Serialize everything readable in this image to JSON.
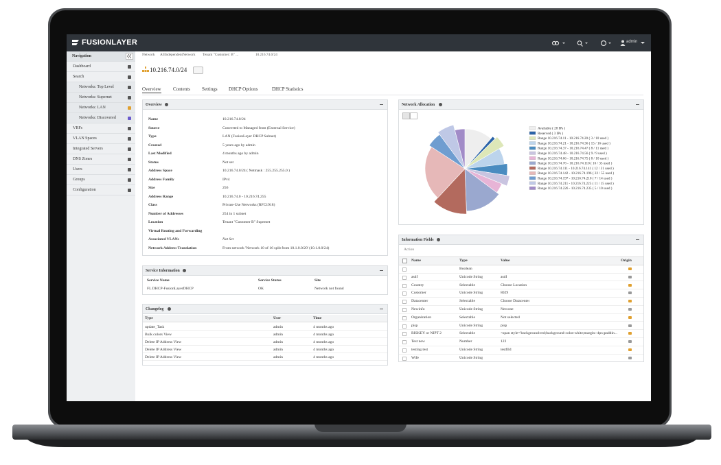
{
  "header": {
    "brand": "FUSIONLAYER",
    "user": "admin"
  },
  "sidebar": {
    "title": "Navigation",
    "items": [
      "Dashboard",
      "Search",
      "Networks: Top Level",
      "Networks: Supernet",
      "Networks: LAN",
      "Networks: Discovered",
      "VRFs",
      "VLAN Spaces",
      "Integrated Servers",
      "DNS Zones",
      "Users",
      "Groups",
      "Configuration"
    ]
  },
  "breadcrumb": [
    "Network",
    "AllIndependentNetwork",
    "Tenant \"Customer: B\" ...",
    "10.216.74.0/24"
  ],
  "title": "10.216.74.0/24",
  "tabs": [
    "Overview",
    "Contents",
    "Settings",
    "DHCP Options",
    "DHCP Statistics"
  ],
  "overview": {
    "title": "Overview",
    "rows": [
      [
        "Name",
        "10.216.74.0/24"
      ],
      [
        "Source",
        "Converted to Managed from (External Service)"
      ],
      [
        "Type",
        "LAN (FusionLayer DHCP Subnet)"
      ],
      [
        "Created",
        "5 years ago by admin"
      ],
      [
        "Last Modified",
        "4 months ago by admin"
      ],
      [
        "Status",
        "Not set"
      ],
      [
        "Address Space",
        "10.216.74.0/24 ( Netmask : 255.255.255.0 )"
      ],
      [
        "Address Family",
        "IPv4"
      ],
      [
        "Size",
        "256"
      ],
      [
        "Address Range",
        "10.216.74.0 - 10.216.74.255"
      ],
      [
        "Class",
        "Private-Use Networks (RFC1918)"
      ],
      [
        "Number of Addresses",
        "254 in 1 subnet"
      ],
      [
        "Location",
        "Tenant \"Customer B\" Supernet"
      ],
      [
        "Virtual Routing and Forwarding"
      ],
      [
        "Associated VLANs",
        "Not Set"
      ],
      [
        "Network Address Translation",
        "From network 'Network 10 of 16 split from 10.1.0.0/20' (10.1.0.0/24)"
      ]
    ]
  },
  "service": {
    "title": "Service Information",
    "columns": [
      "Service Name",
      "Service Status",
      "Site"
    ],
    "rows": [
      [
        "FL DHCP-FusionLayerDHCP",
        "OK",
        "Network not found"
      ]
    ]
  },
  "changelog": {
    "title": "Changelog",
    "columns": [
      "Type",
      "User",
      "Time"
    ],
    "rows": [
      [
        "update_Task",
        "admin",
        "4 months ago"
      ],
      [
        "Bulk colors View",
        "admin",
        "4 months ago"
      ],
      [
        "Delete IP Address View",
        "admin",
        "4 months ago"
      ],
      [
        "Delete IP Address View",
        "admin",
        "4 months ago"
      ],
      [
        "Delete IP Address View",
        "admin",
        "4 months ago"
      ]
    ]
  },
  "allocation": {
    "title": "Network Allocation",
    "chart": {
      "type": "pie",
      "categories": [
        "Available ( 28 IPs )",
        "Reserved ( 3 IPs )",
        "Range 10.216.74.11 - 10.216.74.20 ( 3 / 10 used )",
        "Range 10.216.74.21 - 10.216.74.36 ( 15 / 16 used )",
        "Range 10.216.74.37 - 10.216.74.47 ( 8 / 11 used )",
        "Range 10.216.74.48 - 10.216.74.56 ( 9 / 9 used )",
        "Range 10.216.74.66 - 10.216.74.75 ( 8 / 10 used )",
        "Range 10.216.74.76 - 10.216.74.110 ( 16 / 35 used )",
        "Range 10.216.74.111 - 10.216.74.141 ( 12 / 31 used )",
        "Range 10.216.74.142 - 10.216.74.196 ( 22 / 55 used )",
        "Range 10.216.74.197 - 10.216.74.210 ( 7 / 14 used )",
        "Range 10.216.74.211 - 10.216.74.225 ( 11 / 15 used )",
        "Range 10.216.74.226 - 10.216.74.235 ( 5 / 10 used )"
      ],
      "values": [
        28,
        3,
        10,
        16,
        11,
        9,
        10,
        35,
        31,
        55,
        14,
        15,
        10
      ],
      "colors": [
        "#eeeeee",
        "#2b63a8",
        "#dde7b8",
        "#bcd4ec",
        "#4a8cc0",
        "#c9c4e0",
        "#e7b4d6",
        "#9aa8cf",
        "#b36a5e",
        "#e6b8b8",
        "#6f9dd0",
        "#bfc8e6",
        "#a18bc7"
      ]
    }
  },
  "info_fields": {
    "title": "Information Fields",
    "action": "Action",
    "columns": [
      "Name",
      "Type",
      "Value",
      "Origin"
    ],
    "rows": [
      [
        null,
        "Boolean",
        null
      ],
      [
        "asdf",
        "Unicode String",
        "asdf"
      ],
      [
        "Country",
        "Selectable",
        "Choose Location"
      ],
      [
        "Customer",
        "Unicode String",
        "8029"
      ],
      [
        "Datacenter",
        "Selectable",
        "Choose Datacenter"
      ],
      [
        "Newinfo",
        "Unicode String",
        "Newone"
      ],
      [
        "Organization",
        "Selectable",
        "Not selected"
      ],
      [
        "pisp",
        "Unicode String",
        "pisp"
      ],
      [
        "RISKEY or NIPT 2",
        "Selectable",
        "<span style='background:red;background-color:white;margin:-4px;paddin..."
      ],
      [
        "Test new",
        "Number",
        "123"
      ],
      [
        "testing test",
        "Unicode String",
        "testfild"
      ],
      [
        "Wife",
        "Unicode String",
        null
      ]
    ]
  }
}
